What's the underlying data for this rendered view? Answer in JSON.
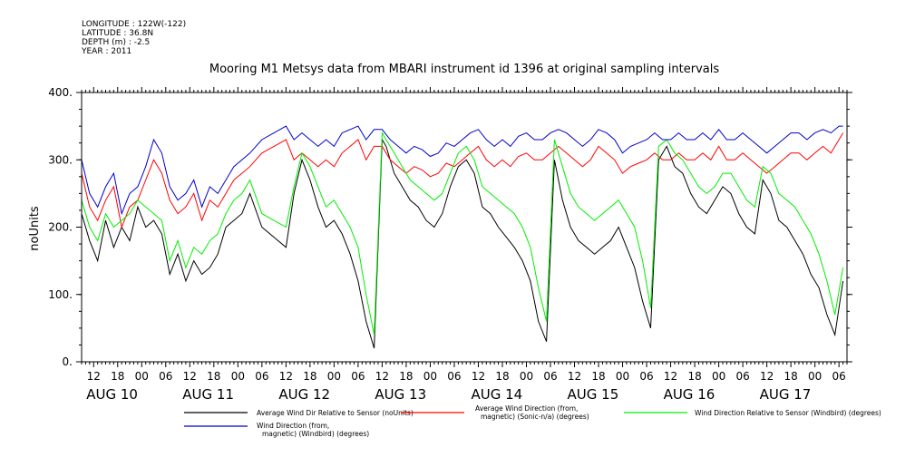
{
  "header": {
    "longitude": "LONGITUDE : 122W(-122)",
    "latitude": "LATITUDE : 36.8N",
    "depth": "DEPTH (m) : -2.5",
    "year": "YEAR : 2011"
  },
  "chart_data": {
    "type": "line",
    "title": "Mooring M1 Metsys data from MBARI instrument id 1396 at original sampling intervals",
    "ylabel": "noUnits",
    "ylim": [
      0,
      400
    ],
    "yticks": [
      {
        "value": 0,
        "label": "0."
      },
      {
        "value": 100,
        "label": "100."
      },
      {
        "value": 200,
        "label": "200."
      },
      {
        "value": 300,
        "label": "300."
      },
      {
        "value": 400,
        "label": "400."
      }
    ],
    "xlim_hours": [
      -15,
      176
    ],
    "x_hour_ticks": [
      {
        "hour": -12,
        "label": "12"
      },
      {
        "hour": -6,
        "label": "18"
      },
      {
        "hour": 0,
        "label": "00"
      },
      {
        "hour": 6,
        "label": "06"
      },
      {
        "hour": 12,
        "label": "12"
      },
      {
        "hour": 18,
        "label": "18"
      },
      {
        "hour": 24,
        "label": "00"
      },
      {
        "hour": 30,
        "label": "06"
      },
      {
        "hour": 36,
        "label": "12"
      },
      {
        "hour": 42,
        "label": "18"
      },
      {
        "hour": 48,
        "label": "00"
      },
      {
        "hour": 54,
        "label": "06"
      },
      {
        "hour": 60,
        "label": "12"
      },
      {
        "hour": 66,
        "label": "18"
      },
      {
        "hour": 72,
        "label": "00"
      },
      {
        "hour": 78,
        "label": "06"
      },
      {
        "hour": 84,
        "label": "12"
      },
      {
        "hour": 90,
        "label": "18"
      },
      {
        "hour": 96,
        "label": "00"
      },
      {
        "hour": 102,
        "label": "06"
      },
      {
        "hour": 108,
        "label": "12"
      },
      {
        "hour": 114,
        "label": "18"
      },
      {
        "hour": 120,
        "label": "00"
      },
      {
        "hour": 126,
        "label": "06"
      },
      {
        "hour": 132,
        "label": "12"
      },
      {
        "hour": 138,
        "label": "18"
      },
      {
        "hour": 144,
        "label": "00"
      },
      {
        "hour": 150,
        "label": "06"
      },
      {
        "hour": 156,
        "label": "12"
      },
      {
        "hour": 162,
        "label": "18"
      },
      {
        "hour": 168,
        "label": "00"
      },
      {
        "hour": 174,
        "label": "06"
      }
    ],
    "x_date_labels": [
      {
        "hour": -12,
        "label": "AUG 10"
      },
      {
        "hour": 12,
        "label": "AUG 11"
      },
      {
        "hour": 36,
        "label": "AUG 12"
      },
      {
        "hour": 60,
        "label": "AUG 13"
      },
      {
        "hour": 84,
        "label": "AUG 14"
      },
      {
        "hour": 108,
        "label": "AUG 15"
      },
      {
        "hour": 132,
        "label": "AUG 16"
      },
      {
        "hour": 156,
        "label": "AUG 17"
      }
    ],
    "series": [
      {
        "name": "Average Wind Dir Relative to Sensor (noUnits)",
        "color": "#000000",
        "x": [
          -15,
          -13,
          -11,
          -9,
          -7,
          -5,
          -3,
          -1,
          1,
          3,
          5,
          7,
          9,
          11,
          13,
          15,
          17,
          19,
          21,
          23,
          25,
          27,
          30,
          33,
          36,
          38,
          40,
          42,
          44,
          46,
          48,
          50,
          52,
          54,
          56,
          58,
          60,
          61,
          63,
          65,
          67,
          69,
          71,
          73,
          75,
          77,
          79,
          81,
          83,
          85,
          87,
          89,
          91,
          93,
          95,
          97,
          99,
          101,
          103,
          105,
          107,
          109,
          111,
          113,
          115,
          117,
          119,
          121,
          123,
          125,
          127,
          129,
          131,
          133,
          135,
          137,
          139,
          141,
          143,
          145,
          147,
          149,
          151,
          153,
          155,
          157,
          159,
          161,
          163,
          165,
          167,
          169,
          171,
          173,
          175
        ],
        "y": [
          220,
          180,
          150,
          210,
          170,
          200,
          180,
          230,
          200,
          210,
          190,
          130,
          160,
          120,
          150,
          130,
          140,
          160,
          200,
          210,
          220,
          250,
          200,
          185,
          170,
          250,
          300,
          270,
          230,
          200,
          210,
          190,
          160,
          120,
          60,
          20,
          330,
          320,
          280,
          260,
          240,
          230,
          210,
          200,
          220,
          260,
          290,
          300,
          280,
          230,
          220,
          200,
          185,
          170,
          150,
          120,
          60,
          30,
          300,
          240,
          200,
          180,
          170,
          160,
          170,
          180,
          200,
          170,
          140,
          90,
          50,
          300,
          320,
          290,
          280,
          250,
          230,
          220,
          240,
          260,
          250,
          220,
          200,
          190,
          270,
          250,
          210,
          200,
          180,
          160,
          130,
          110,
          70,
          40,
          120
        ]
      },
      {
        "name": "Average Wind Direction (from, magnetic) (Sonic-n/a) (degrees)",
        "color": "#ff0000",
        "x": [
          -15,
          -13,
          -11,
          -9,
          -7,
          -5,
          -3,
          -1,
          1,
          3,
          5,
          7,
          9,
          11,
          13,
          15,
          17,
          19,
          21,
          23,
          25,
          27,
          30,
          33,
          36,
          38,
          40,
          42,
          44,
          46,
          48,
          50,
          52,
          54,
          56,
          58,
          60,
          62,
          64,
          66,
          68,
          70,
          72,
          74,
          76,
          78,
          80,
          82,
          84,
          86,
          88,
          90,
          92,
          94,
          96,
          98,
          100,
          102,
          104,
          106,
          108,
          110,
          112,
          114,
          116,
          118,
          120,
          122,
          124,
          126,
          128,
          130,
          132,
          134,
          136,
          138,
          140,
          142,
          144,
          146,
          148,
          150,
          152,
          154,
          156,
          158,
          160,
          162,
          164,
          166,
          168,
          170,
          172,
          174,
          175
        ],
        "y": [
          280,
          230,
          210,
          240,
          260,
          200,
          230,
          240,
          270,
          300,
          280,
          240,
          220,
          230,
          250,
          210,
          240,
          230,
          250,
          270,
          280,
          290,
          310,
          320,
          330,
          300,
          310,
          300,
          290,
          300,
          290,
          310,
          320,
          330,
          300,
          320,
          320,
          300,
          290,
          280,
          290,
          285,
          275,
          280,
          295,
          290,
          300,
          310,
          320,
          300,
          290,
          300,
          290,
          305,
          310,
          300,
          300,
          310,
          320,
          310,
          300,
          290,
          300,
          320,
          310,
          300,
          280,
          290,
          295,
          300,
          310,
          300,
          300,
          310,
          300,
          300,
          310,
          300,
          320,
          300,
          300,
          310,
          300,
          290,
          280,
          290,
          300,
          310,
          310,
          300,
          310,
          320,
          310,
          330,
          340
        ]
      },
      {
        "name": "Wind Direction Relative to Sensor (Windbird) (degrees)",
        "color": "#00ee00",
        "x": [
          -15,
          -13,
          -11,
          -9,
          -7,
          -5,
          -3,
          -1,
          1,
          3,
          5,
          7,
          9,
          11,
          13,
          15,
          17,
          19,
          21,
          23,
          25,
          27,
          30,
          33,
          36,
          38,
          40,
          42,
          44,
          46,
          48,
          50,
          52,
          54,
          56,
          58,
          60,
          61,
          63,
          65,
          67,
          69,
          71,
          73,
          75,
          77,
          79,
          81,
          83,
          85,
          87,
          89,
          91,
          93,
          95,
          97,
          99,
          101,
          103,
          105,
          107,
          109,
          111,
          113,
          115,
          117,
          119,
          121,
          123,
          125,
          127,
          129,
          131,
          133,
          135,
          137,
          139,
          141,
          143,
          145,
          147,
          149,
          151,
          153,
          155,
          157,
          159,
          161,
          163,
          165,
          167,
          169,
          171,
          173,
          175
        ],
        "y": [
          240,
          200,
          180,
          220,
          200,
          210,
          220,
          240,
          230,
          220,
          210,
          150,
          180,
          140,
          170,
          160,
          180,
          190,
          220,
          240,
          250,
          270,
          220,
          210,
          200,
          260,
          310,
          290,
          260,
          230,
          240,
          220,
          200,
          170,
          100,
          40,
          340,
          330,
          310,
          290,
          270,
          260,
          250,
          240,
          250,
          280,
          310,
          320,
          300,
          260,
          250,
          240,
          230,
          220,
          200,
          170,
          110,
          60,
          330,
          290,
          250,
          230,
          220,
          210,
          220,
          230,
          240,
          220,
          200,
          150,
          80,
          320,
          330,
          310,
          300,
          280,
          260,
          250,
          260,
          280,
          280,
          260,
          240,
          230,
          290,
          280,
          250,
          240,
          230,
          210,
          190,
          160,
          120,
          70,
          140
        ]
      },
      {
        "name": "Wind Direction (from, magnetic) (Windbird) (degrees)",
        "color": "#0000cc",
        "x": [
          -15,
          -13,
          -11,
          -9,
          -7,
          -5,
          -3,
          -1,
          1,
          3,
          5,
          7,
          9,
          11,
          13,
          15,
          17,
          19,
          21,
          23,
          25,
          27,
          30,
          33,
          36,
          38,
          40,
          42,
          44,
          46,
          48,
          50,
          52,
          54,
          56,
          58,
          60,
          62,
          64,
          66,
          68,
          70,
          72,
          74,
          76,
          78,
          80,
          82,
          84,
          86,
          88,
          90,
          92,
          94,
          96,
          98,
          100,
          102,
          104,
          106,
          108,
          110,
          112,
          114,
          116,
          118,
          120,
          122,
          124,
          126,
          128,
          130,
          132,
          134,
          136,
          138,
          140,
          142,
          144,
          146,
          148,
          150,
          152,
          154,
          156,
          158,
          160,
          162,
          164,
          166,
          168,
          170,
          172,
          174,
          175
        ],
        "y": [
          300,
          250,
          230,
          260,
          280,
          220,
          250,
          260,
          290,
          330,
          310,
          260,
          240,
          250,
          270,
          230,
          260,
          250,
          270,
          290,
          300,
          310,
          330,
          340,
          350,
          330,
          340,
          330,
          320,
          330,
          320,
          340,
          345,
          350,
          330,
          345,
          345,
          330,
          320,
          310,
          320,
          315,
          305,
          310,
          325,
          320,
          330,
          340,
          345,
          330,
          320,
          330,
          320,
          335,
          340,
          330,
          330,
          340,
          345,
          340,
          330,
          320,
          330,
          345,
          340,
          330,
          310,
          320,
          325,
          330,
          340,
          330,
          330,
          340,
          330,
          330,
          340,
          330,
          345,
          330,
          330,
          340,
          330,
          320,
          310,
          320,
          330,
          340,
          340,
          330,
          340,
          345,
          340,
          350,
          350
        ]
      }
    ],
    "legend": [
      {
        "text": "Average Wind Dir Relative to Sensor (noUnits)",
        "color": "#000000"
      },
      {
        "text": "Average Wind Direction (from,\nmagnetic) (Sonic-n/a) (degrees)",
        "color": "#ff0000"
      },
      {
        "text": "Wind Direction Relative to Sensor (Windbird) (degrees)",
        "color": "#00ee00"
      },
      {
        "text": "Wind Direction (from,\nmagnetic) (Windbird) (degrees)",
        "color": "#0000cc"
      }
    ]
  }
}
